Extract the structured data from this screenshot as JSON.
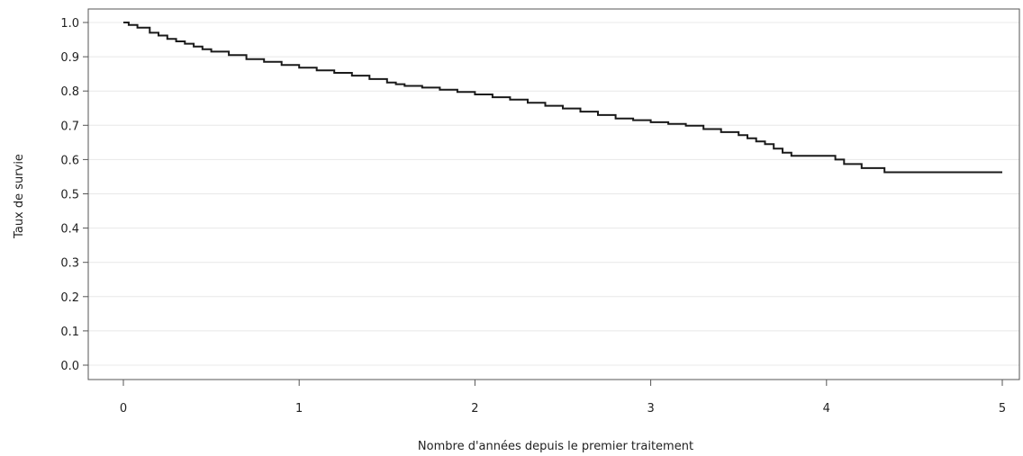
{
  "chart_data": {
    "type": "line",
    "title": "",
    "xlabel": "Nombre d'années depuis le premier traitement",
    "ylabel": "Taux de survie",
    "xlim": [
      0,
      5
    ],
    "ylim": [
      0,
      1
    ],
    "x_ticks": [
      "0",
      "1",
      "2",
      "3",
      "4",
      "5"
    ],
    "y_ticks": [
      "0.0",
      "0.1",
      "0.2",
      "0.3",
      "0.4",
      "0.5",
      "0.6",
      "0.7",
      "0.8",
      "0.9",
      "1.0"
    ],
    "grid": "horizontal",
    "step": true,
    "line_color": "#1a1a1a",
    "grid_color": "#e8e8e8",
    "series": [
      {
        "x": [
          0,
          0.03,
          0.08,
          0.15,
          0.2,
          0.25,
          0.3,
          0.35,
          0.4,
          0.45,
          0.5,
          0.6,
          0.7,
          0.8,
          0.9,
          1.0,
          1.1,
          1.2,
          1.3,
          1.4,
          1.5,
          1.55,
          1.6,
          1.7,
          1.8,
          1.9,
          2.0,
          2.1,
          2.2,
          2.3,
          2.4,
          2.5,
          2.6,
          2.7,
          2.8,
          2.9,
          3.0,
          3.1,
          3.2,
          3.3,
          3.4,
          3.5,
          3.55,
          3.6,
          3.65,
          3.7,
          3.75,
          3.8,
          3.9,
          4.0,
          4.05,
          4.1,
          4.2,
          4.33,
          5.0
        ],
        "y": [
          1.0,
          0.993,
          0.985,
          0.97,
          0.962,
          0.952,
          0.945,
          0.938,
          0.93,
          0.922,
          0.915,
          0.905,
          0.893,
          0.885,
          0.876,
          0.868,
          0.86,
          0.853,
          0.845,
          0.835,
          0.825,
          0.82,
          0.815,
          0.81,
          0.804,
          0.797,
          0.79,
          0.782,
          0.775,
          0.766,
          0.757,
          0.749,
          0.74,
          0.73,
          0.72,
          0.715,
          0.709,
          0.704,
          0.699,
          0.689,
          0.68,
          0.671,
          0.662,
          0.653,
          0.645,
          0.632,
          0.62,
          0.611,
          0.611,
          0.611,
          0.6,
          0.587,
          0.575,
          0.563,
          0.563
        ]
      }
    ]
  }
}
